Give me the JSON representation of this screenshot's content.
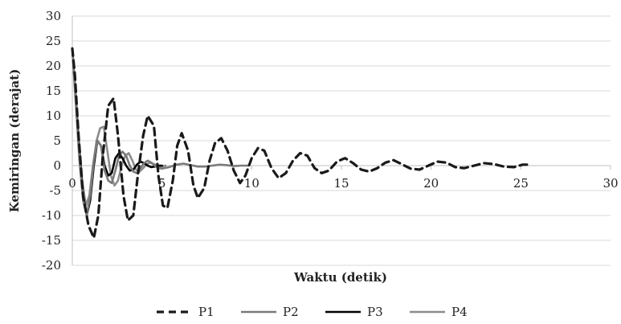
{
  "chart_data": {
    "type": "line",
    "title": "",
    "xlabel": "Waktu (detik)",
    "ylabel": "Kemiringan (derajat)",
    "xlim": [
      0,
      30
    ],
    "ylim": [
      -20,
      30
    ],
    "xticks": [
      0,
      5,
      10,
      15,
      20,
      25,
      30
    ],
    "yticks": [
      -20,
      -15,
      -10,
      -5,
      0,
      5,
      10,
      15,
      20,
      25,
      30
    ],
    "grid": "horizontal",
    "legend_position": "bottom",
    "series": [
      {
        "name": "P1",
        "color": "#1a1a1a",
        "dash": "dashed",
        "x": [
          0,
          0.15,
          0.35,
          0.6,
          0.9,
          1.2,
          1.45,
          1.7,
          2.0,
          2.3,
          2.55,
          2.85,
          3.1,
          3.4,
          3.65,
          3.95,
          4.2,
          4.55,
          4.8,
          5.05,
          5.3,
          5.6,
          5.85,
          6.1,
          6.45,
          6.75,
          7.0,
          7.35,
          7.65,
          7.95,
          8.3,
          8.65,
          9.0,
          9.35,
          9.65,
          10.0,
          10.35,
          10.7,
          11.1,
          11.5,
          11.9,
          12.3,
          12.7,
          13.1,
          13.5,
          13.9,
          14.3,
          14.75,
          15.2,
          15.65,
          16.1,
          16.55,
          17.0,
          17.45,
          17.9,
          18.35,
          18.85,
          19.35,
          19.85,
          20.35,
          20.85,
          21.35,
          21.85,
          22.4,
          22.95,
          23.5,
          24.05,
          24.6,
          25.1,
          25.4
        ],
        "y": [
          23.5,
          18,
          6,
          -6,
          -12,
          -14.5,
          -10,
          2,
          12,
          13.5,
          6,
          -6,
          -11,
          -10,
          -2,
          6,
          10,
          8,
          -2,
          -8,
          -8.5,
          -3,
          4,
          6.5,
          3,
          -4,
          -6.5,
          -4.5,
          1,
          4.5,
          5.5,
          3,
          -1,
          -3.5,
          -2,
          1.5,
          3.5,
          3,
          -0.5,
          -2.5,
          -1.5,
          1,
          2.5,
          2,
          -0.5,
          -1.5,
          -1,
          0.8,
          1.5,
          0.5,
          -0.8,
          -1.2,
          -0.5,
          0.6,
          1.1,
          0.3,
          -0.6,
          -0.8,
          0,
          0.8,
          0.6,
          -0.3,
          -0.5,
          0,
          0.5,
          0.3,
          -0.2,
          -0.3,
          0.2,
          0.2
        ]
      },
      {
        "name": "P2",
        "color": "#7a7a7a",
        "dash": "solid",
        "x": [
          0,
          0.2,
          0.4,
          0.6,
          0.8,
          1.0,
          1.2,
          1.4,
          1.6,
          1.8,
          2.0,
          2.2,
          2.4,
          2.6,
          2.8,
          3.0,
          3.2,
          3.4,
          3.6,
          3.8,
          4.0,
          4.2,
          4.4,
          4.6,
          4.8,
          5.0,
          5.4,
          5.8,
          6.2,
          6.6,
          7.0,
          7.4,
          7.8,
          8.2,
          8.6,
          9.0,
          9.4,
          9.8
        ],
        "y": [
          23.5,
          12,
          1,
          -7,
          -10,
          -6,
          1,
          5,
          4,
          -1,
          -3,
          -3.5,
          -1,
          2,
          2.8,
          2,
          0,
          -1.2,
          -1.5,
          -0.5,
          0.5,
          1,
          0.6,
          0,
          -0.5,
          -0.6,
          -0.3,
          0.2,
          0.4,
          0.1,
          -0.2,
          -0.2,
          0,
          0.2,
          0.1,
          -0.1,
          0,
          0
        ]
      },
      {
        "name": "P3",
        "color": "#000000",
        "dash": "solid",
        "x": [
          0,
          0.2,
          0.4,
          0.6,
          0.8,
          1.0,
          1.2,
          1.4,
          1.6,
          1.8,
          2.0,
          2.2,
          2.4,
          2.6,
          2.8,
          3.0,
          3.2,
          3.4,
          3.6,
          3.8,
          4.0,
          4.2,
          4.4,
          4.6,
          4.8,
          5.0
        ],
        "y": [
          23.5,
          13,
          2,
          -6,
          -10,
          -7,
          0,
          5,
          4,
          0,
          -2,
          -1.5,
          1.5,
          2.5,
          1.5,
          0,
          -1,
          -0.8,
          0.2,
          0.8,
          0.5,
          0,
          -0.3,
          -0.2,
          0,
          0
        ]
      },
      {
        "name": "P4",
        "color": "#8c8c8c",
        "dash": "solid",
        "x": [
          0,
          0.15,
          0.35,
          0.55,
          0.75,
          0.95,
          1.15,
          1.35,
          1.55,
          1.75,
          1.95,
          2.15,
          2.35,
          2.55,
          2.75,
          2.95,
          3.15,
          3.35,
          3.55,
          3.75,
          3.95,
          4.15,
          4.35,
          4.55,
          4.75,
          4.95,
          5.2
        ],
        "y": [
          23.5,
          16,
          6,
          -3,
          -8,
          -6,
          0,
          5,
          7.5,
          7.8,
          3,
          -2,
          -4,
          -3,
          0,
          2,
          2.5,
          1,
          -0.8,
          -1.2,
          -0.5,
          0.3,
          0.6,
          0.3,
          0,
          -0.2,
          0
        ]
      }
    ]
  }
}
